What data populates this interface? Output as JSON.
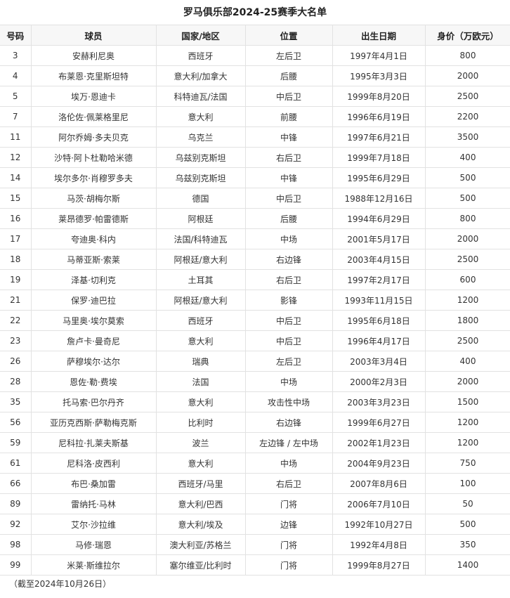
{
  "title": "罗马俱乐部2024-25赛季大名单",
  "columns": [
    "号码",
    "球员",
    "国家/地区",
    "位置",
    "出生日期",
    "身价（万欧元）"
  ],
  "rows": [
    [
      "3",
      "安赫利尼奥",
      "西班牙",
      "左后卫",
      "1997年4月1日",
      "800"
    ],
    [
      "4",
      "布莱恩·克里斯坦特",
      "意大利/加拿大",
      "后腰",
      "1995年3月3日",
      "2000"
    ],
    [
      "5",
      "埃万·恩迪卡",
      "科特迪瓦/法国",
      "中后卫",
      "1999年8月20日",
      "2500"
    ],
    [
      "7",
      "洛伦佐·佩莱格里尼",
      "意大利",
      "前腰",
      "1996年6月19日",
      "2200"
    ],
    [
      "11",
      "阿尔乔姆·多夫贝克",
      "乌克兰",
      "中锋",
      "1997年6月21日",
      "3500"
    ],
    [
      "12",
      "沙特·阿卜杜勒哈米德",
      "乌兹别克斯坦",
      "右后卫",
      "1999年7月18日",
      "400"
    ],
    [
      "14",
      "埃尔多尔·肖穆罗多夫",
      "乌兹别克斯坦",
      "中锋",
      "1995年6月29日",
      "500"
    ],
    [
      "15",
      "马茨·胡梅尔斯",
      "德国",
      "中后卫",
      "1988年12月16日",
      "500"
    ],
    [
      "16",
      "莱昂德罗·帕雷德斯",
      "阿根廷",
      "后腰",
      "1994年6月29日",
      "800"
    ],
    [
      "17",
      "夸迪奥·科内",
      "法国/科特迪瓦",
      "中场",
      "2001年5月17日",
      "2000"
    ],
    [
      "18",
      "马蒂亚斯·索莱",
      "阿根廷/意大利",
      "右边锋",
      "2003年4月15日",
      "2500"
    ],
    [
      "19",
      "泽基·切利克",
      "土耳其",
      "右后卫",
      "1997年2月17日",
      "600"
    ],
    [
      "21",
      "保罗·迪巴拉",
      "阿根廷/意大利",
      "影锋",
      "1993年11月15日",
      "1200"
    ],
    [
      "22",
      "马里奥·埃尔莫索",
      "西班牙",
      "中后卫",
      "1995年6月18日",
      "1800"
    ],
    [
      "23",
      "詹卢卡·曼奇尼",
      "意大利",
      "中后卫",
      "1996年4月17日",
      "2500"
    ],
    [
      "26",
      "萨穆埃尔·达尔",
      "瑞典",
      "左后卫",
      "2003年3月4日",
      "400"
    ],
    [
      "28",
      "恩佐·勒·费埃",
      "法国",
      "中场",
      "2000年2月3日",
      "2000"
    ],
    [
      "35",
      "托马索·巴尔丹齐",
      "意大利",
      "攻击性中场",
      "2003年3月23日",
      "1500"
    ],
    [
      "56",
      "亚历克西斯·萨勒梅克斯",
      "比利时",
      "右边锋",
      "1999年6月27日",
      "1200"
    ],
    [
      "59",
      "尼科拉·扎莱夫斯基",
      "波兰",
      "左边锋 / 左中场",
      "2002年1月23日",
      "1200"
    ],
    [
      "61",
      "尼科洛·皮西利",
      "意大利",
      "中场",
      "2004年9月23日",
      "750"
    ],
    [
      "66",
      "布巴·桑加雷",
      "西班牙/马里",
      "右后卫",
      "2007年8月6日",
      "100"
    ],
    [
      "89",
      "雷纳托·马林",
      "意大利/巴西",
      "门将",
      "2006年7月10日",
      "50"
    ],
    [
      "92",
      "艾尔·沙拉维",
      "意大利/埃及",
      "边锋",
      "1992年10月27日",
      "500"
    ],
    [
      "98",
      "马修·瑞恩",
      "澳大利亚/苏格兰",
      "门将",
      "1992年4月8日",
      "350"
    ],
    [
      "99",
      "米莱·斯维拉尔",
      "塞尔维亚/比利时",
      "门将",
      "1999年8月27日",
      "1400"
    ]
  ],
  "note": "（截至2024年10月26日）"
}
